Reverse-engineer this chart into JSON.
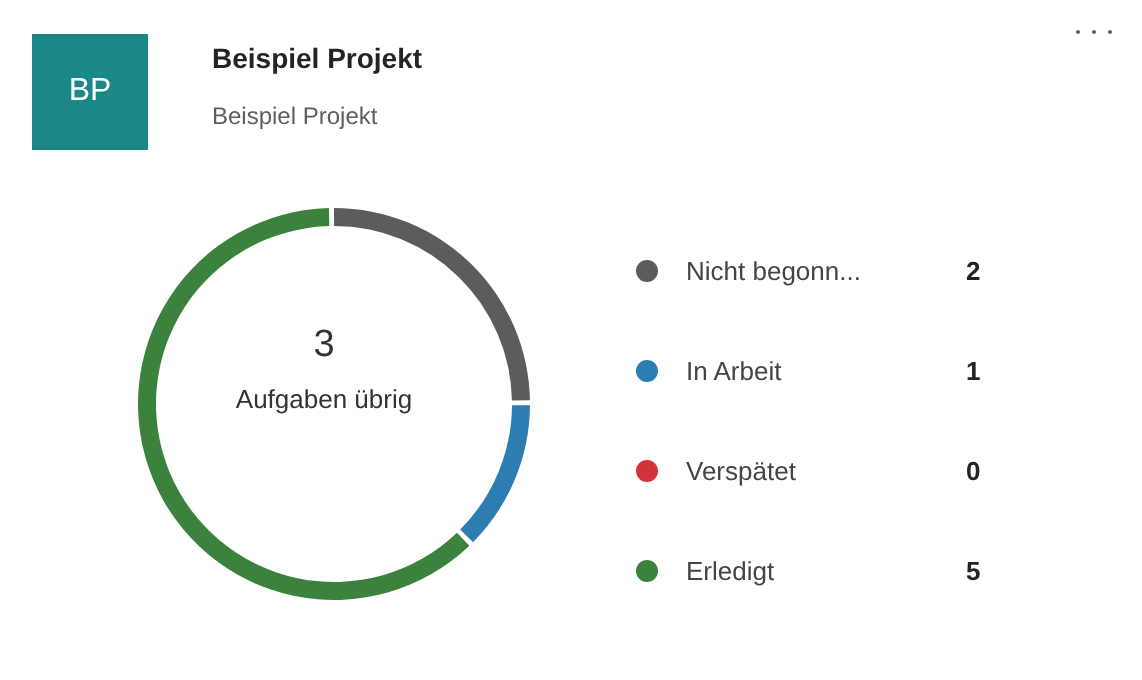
{
  "chart_data": {
    "type": "donut",
    "title": "Beispiel Projekt",
    "subtitle": "Beispiel Projekt",
    "categories": [
      "Nicht begonn...",
      "In Arbeit",
      "Verspätet",
      "Erledigt"
    ],
    "values": [
      2,
      1,
      0,
      5
    ],
    "colors": [
      "#5c5c5c",
      "#2d7db3",
      "#d13438",
      "#3b833d"
    ],
    "annotations": [
      "BP",
      "3",
      "Aufgaben übrig"
    ],
    "value_labels": [
      "2",
      "1",
      "0",
      "5"
    ],
    "legend": "right"
  }
}
